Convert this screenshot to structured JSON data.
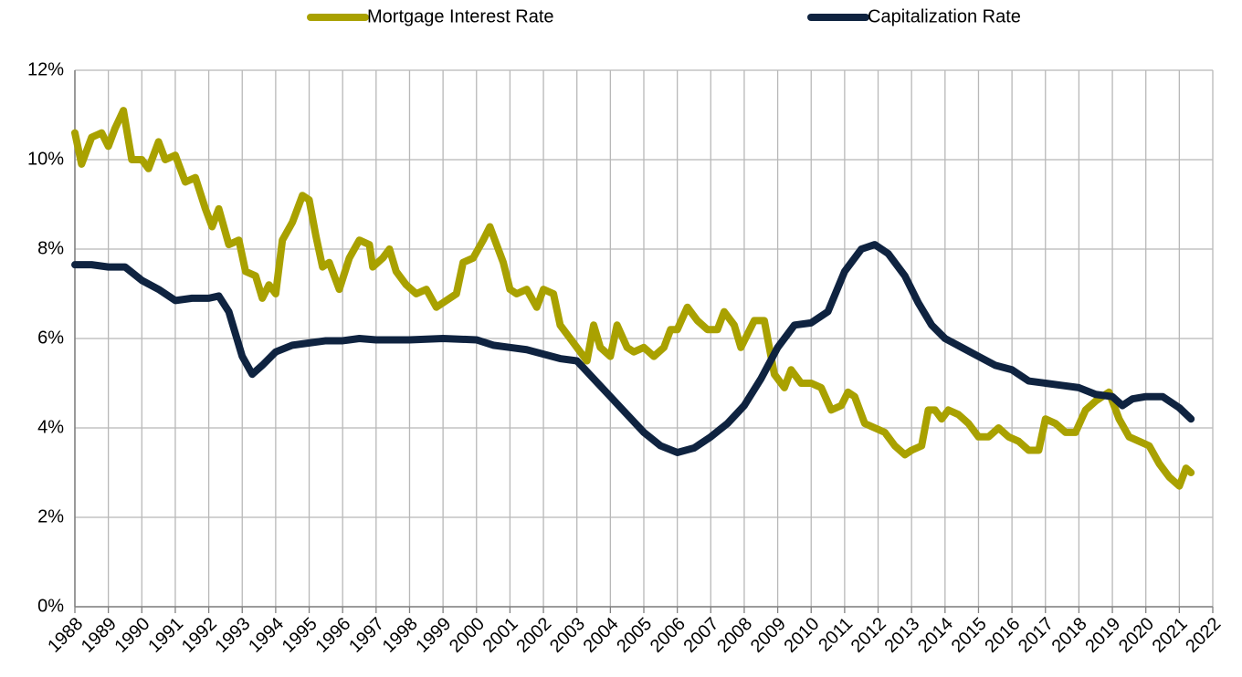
{
  "chart_data": {
    "type": "line",
    "series": [
      {
        "name": "Mortgage Interest Rate",
        "color": "#a9a100",
        "x": [
          1988.0,
          1988.2,
          1988.5,
          1988.8,
          1989.0,
          1989.2,
          1989.45,
          1989.7,
          1990.0,
          1990.2,
          1990.5,
          1990.7,
          1991.0,
          1991.3,
          1991.6,
          1991.9,
          1992.1,
          1992.3,
          1992.6,
          1992.9,
          1993.1,
          1993.4,
          1993.6,
          1993.8,
          1994.0,
          1994.2,
          1994.5,
          1994.8,
          1995.0,
          1995.2,
          1995.4,
          1995.6,
          1995.9,
          1996.2,
          1996.5,
          1996.8,
          1996.9,
          1997.2,
          1997.4,
          1997.6,
          1997.9,
          1998.2,
          1998.5,
          1998.8,
          1999.0,
          1999.4,
          1999.6,
          1999.9,
          2000.2,
          2000.4,
          2000.6,
          2000.8,
          2001.0,
          2001.2,
          2001.5,
          2001.8,
          2002.0,
          2002.3,
          2002.5,
          2002.8,
          2003.0,
          2003.3,
          2003.5,
          2003.7,
          2004.0,
          2004.2,
          2004.5,
          2004.7,
          2005.0,
          2005.3,
          2005.6,
          2005.8,
          2006.0,
          2006.3,
          2006.6,
          2006.9,
          2007.2,
          2007.4,
          2007.7,
          2007.9,
          2008.1,
          2008.3,
          2008.6,
          2008.9,
          2009.2,
          2009.4,
          2009.7,
          2010.0,
          2010.3,
          2010.6,
          2010.9,
          2011.1,
          2011.3,
          2011.6,
          2011.9,
          2012.2,
          2012.5,
          2012.8,
          2013.0,
          2013.3,
          2013.5,
          2013.7,
          2013.9,
          2014.1,
          2014.4,
          2014.7,
          2015.0,
          2015.3,
          2015.6,
          2015.9,
          2016.2,
          2016.5,
          2016.8,
          2017.0,
          2017.3,
          2017.6,
          2017.9,
          2018.2,
          2018.5,
          2018.9,
          2019.2,
          2019.5,
          2019.8,
          2020.1,
          2020.4,
          2020.7,
          2021.0,
          2021.2,
          2021.35
        ],
        "values": [
          10.6,
          9.9,
          10.5,
          10.6,
          10.3,
          10.7,
          11.1,
          10.0,
          10.0,
          9.8,
          10.4,
          10.0,
          10.1,
          9.5,
          9.6,
          8.9,
          8.5,
          8.9,
          8.1,
          8.2,
          7.5,
          7.4,
          6.9,
          7.2,
          7.0,
          8.2,
          8.6,
          9.2,
          9.1,
          8.3,
          7.6,
          7.7,
          7.1,
          7.8,
          8.2,
          8.1,
          7.6,
          7.8,
          8.0,
          7.5,
          7.2,
          7.0,
          7.1,
          6.7,
          6.8,
          7.0,
          7.7,
          7.8,
          8.2,
          8.5,
          8.1,
          7.7,
          7.1,
          7.0,
          7.1,
          6.7,
          7.1,
          7.0,
          6.3,
          6.0,
          5.8,
          5.5,
          6.3,
          5.8,
          5.6,
          6.3,
          5.8,
          5.7,
          5.8,
          5.6,
          5.8,
          6.2,
          6.2,
          6.7,
          6.4,
          6.2,
          6.2,
          6.6,
          6.3,
          5.8,
          6.1,
          6.4,
          6.4,
          5.2,
          4.9,
          5.3,
          5.0,
          5.0,
          4.9,
          4.4,
          4.5,
          4.8,
          4.7,
          4.1,
          4.0,
          3.9,
          3.6,
          3.4,
          3.5,
          3.6,
          4.4,
          4.4,
          4.2,
          4.4,
          4.3,
          4.1,
          3.8,
          3.8,
          4.0,
          3.8,
          3.7,
          3.5,
          3.5,
          4.2,
          4.1,
          3.9,
          3.9,
          4.4,
          4.6,
          4.8,
          4.2,
          3.8,
          3.7,
          3.6,
          3.2,
          2.9,
          2.7,
          3.1,
          3.0
        ]
      },
      {
        "name": "Capitalization Rate",
        "color": "#0f2340",
        "x": [
          1988.0,
          1988.5,
          1989.0,
          1989.5,
          1990.0,
          1990.5,
          1991.0,
          1991.5,
          1992.0,
          1992.3,
          1992.6,
          1993.0,
          1993.3,
          1993.6,
          1994.0,
          1994.5,
          1995.0,
          1995.5,
          1996.0,
          1996.5,
          1997.0,
          1998.0,
          1999.0,
          2000.0,
          2000.5,
          2001.0,
          2001.5,
          2002.0,
          2002.5,
          2003.0,
          2003.5,
          2004.0,
          2004.5,
          2005.0,
          2005.5,
          2006.0,
          2006.5,
          2007.0,
          2007.5,
          2008.0,
          2008.5,
          2009.0,
          2009.5,
          2010.0,
          2010.5,
          2011.0,
          2011.5,
          2011.9,
          2012.3,
          2012.8,
          2013.2,
          2013.6,
          2014.0,
          2014.5,
          2015.0,
          2015.5,
          2016.0,
          2016.5,
          2017.0,
          2017.5,
          2018.0,
          2018.5,
          2019.0,
          2019.3,
          2019.6,
          2020.0,
          2020.5,
          2021.0,
          2021.35
        ],
        "values": [
          7.65,
          7.65,
          7.6,
          7.6,
          7.3,
          7.1,
          6.85,
          6.9,
          6.9,
          6.95,
          6.6,
          5.6,
          5.2,
          5.4,
          5.7,
          5.85,
          5.9,
          5.95,
          5.95,
          6.0,
          5.97,
          5.97,
          6.0,
          5.97,
          5.85,
          5.8,
          5.75,
          5.65,
          5.55,
          5.5,
          5.1,
          4.7,
          4.3,
          3.9,
          3.6,
          3.45,
          3.55,
          3.8,
          4.1,
          4.5,
          5.1,
          5.8,
          6.3,
          6.35,
          6.6,
          7.5,
          8.0,
          8.1,
          7.9,
          7.4,
          6.8,
          6.3,
          6.0,
          5.8,
          5.6,
          5.4,
          5.3,
          5.05,
          5.0,
          4.95,
          4.9,
          4.75,
          4.7,
          4.5,
          4.65,
          4.7,
          4.7,
          4.45,
          4.2
        ]
      }
    ],
    "xlim": [
      1988,
      2022
    ],
    "xticks": [
      1988,
      1989,
      1990,
      1991,
      1992,
      1993,
      1994,
      1995,
      1996,
      1997,
      1998,
      1999,
      2000,
      2001,
      2002,
      2003,
      2004,
      2005,
      2006,
      2007,
      2008,
      2009,
      2010,
      2011,
      2012,
      2013,
      2014,
      2015,
      2016,
      2017,
      2018,
      2019,
      2020,
      2021,
      2022
    ],
    "ylim": [
      0,
      12
    ],
    "yticks": [
      {
        "value": 0,
        "label": "0%"
      },
      {
        "value": 2,
        "label": "2%"
      },
      {
        "value": 4,
        "label": "4%"
      },
      {
        "value": 6,
        "label": "6%"
      },
      {
        "value": 8,
        "label": "8%"
      },
      {
        "value": 10,
        "label": "10%"
      },
      {
        "value": 12,
        "label": "12%"
      }
    ],
    "grid": true,
    "legend": "top"
  }
}
